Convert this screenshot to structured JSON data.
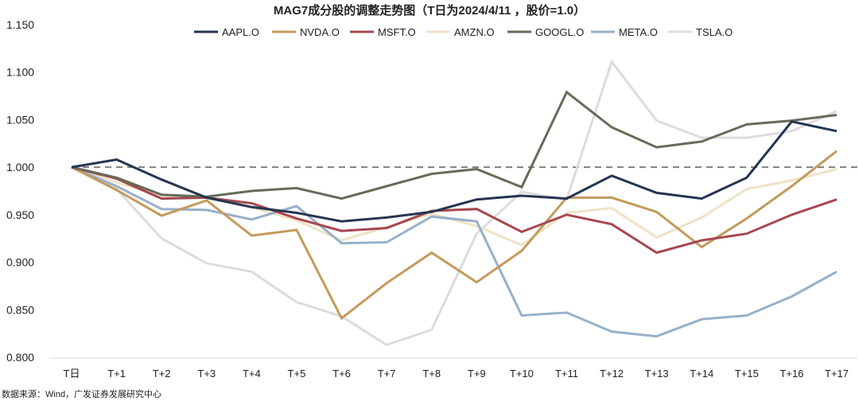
{
  "chart_data": {
    "type": "line",
    "title": "MAG7成分股的调整走势图（T日为2024/4/11 ，股价=1.0）",
    "xlabel": "",
    "ylabel": "",
    "categories": [
      "T日",
      "T+1",
      "T+2",
      "T+3",
      "T+4",
      "T+5",
      "T+6",
      "T+7",
      "T+8",
      "T+9",
      "T+10",
      "T+11",
      "T+12",
      "T+13",
      "T+14",
      "T+15",
      "T+16",
      "T+17"
    ],
    "ylim": [
      0.8,
      1.15
    ],
    "yticks": [
      "0.800",
      "0.850",
      "0.900",
      "0.950",
      "1.000",
      "1.050",
      "1.100",
      "1.150"
    ],
    "reference_line": 1.0,
    "grid": false,
    "legend_position": "top",
    "series": [
      {
        "name": "AAPL.O",
        "color": "#243650",
        "values": [
          1.0,
          1.008,
          0.987,
          0.968,
          0.958,
          0.952,
          0.943,
          0.947,
          0.953,
          0.966,
          0.97,
          0.967,
          0.991,
          0.973,
          0.967,
          0.989,
          1.048,
          1.038
        ]
      },
      {
        "name": "NVDA.O",
        "color": "#c49a5c",
        "values": [
          1.0,
          0.976,
          0.949,
          0.965,
          0.928,
          0.934,
          0.841,
          0.878,
          0.91,
          0.879,
          0.912,
          0.968,
          0.968,
          0.953,
          0.916,
          0.946,
          0.98,
          1.017
        ]
      },
      {
        "name": "MSFT.O",
        "color": "#a7474f",
        "values": [
          1.0,
          0.988,
          0.967,
          0.968,
          0.962,
          0.946,
          0.933,
          0.936,
          0.954,
          0.956,
          0.932,
          0.95,
          0.94,
          0.91,
          0.923,
          0.93,
          0.95,
          0.966
        ]
      },
      {
        "name": "AMZN.O",
        "color": "#efe2c6",
        "values": [
          1.0,
          0.984,
          0.97,
          0.968,
          0.958,
          0.944,
          0.923,
          0.937,
          0.951,
          0.938,
          0.918,
          0.952,
          0.957,
          0.926,
          0.947,
          0.977,
          0.986,
          0.998
        ]
      },
      {
        "name": "GOOGL.O",
        "color": "#676b58",
        "values": [
          1.0,
          0.989,
          0.971,
          0.969,
          0.975,
          0.978,
          0.967,
          0.98,
          0.993,
          0.998,
          0.979,
          1.079,
          1.042,
          1.021,
          1.027,
          1.045,
          1.049,
          1.055
        ]
      },
      {
        "name": "META.O",
        "color": "#98b0c8",
        "values": [
          1.0,
          0.98,
          0.956,
          0.955,
          0.945,
          0.959,
          0.92,
          0.921,
          0.948,
          0.943,
          0.844,
          0.847,
          0.827,
          0.822,
          0.84,
          0.844,
          0.864,
          0.89
        ]
      },
      {
        "name": "TSLA.O",
        "color": "#dcdcdc",
        "values": [
          1.0,
          0.977,
          0.925,
          0.899,
          0.89,
          0.858,
          0.843,
          0.813,
          0.829,
          0.93,
          0.974,
          0.966,
          1.111,
          1.049,
          1.031,
          1.031,
          1.038,
          1.059
        ]
      }
    ]
  },
  "source": "数据来源：Wind，广发证券发展研究中心"
}
